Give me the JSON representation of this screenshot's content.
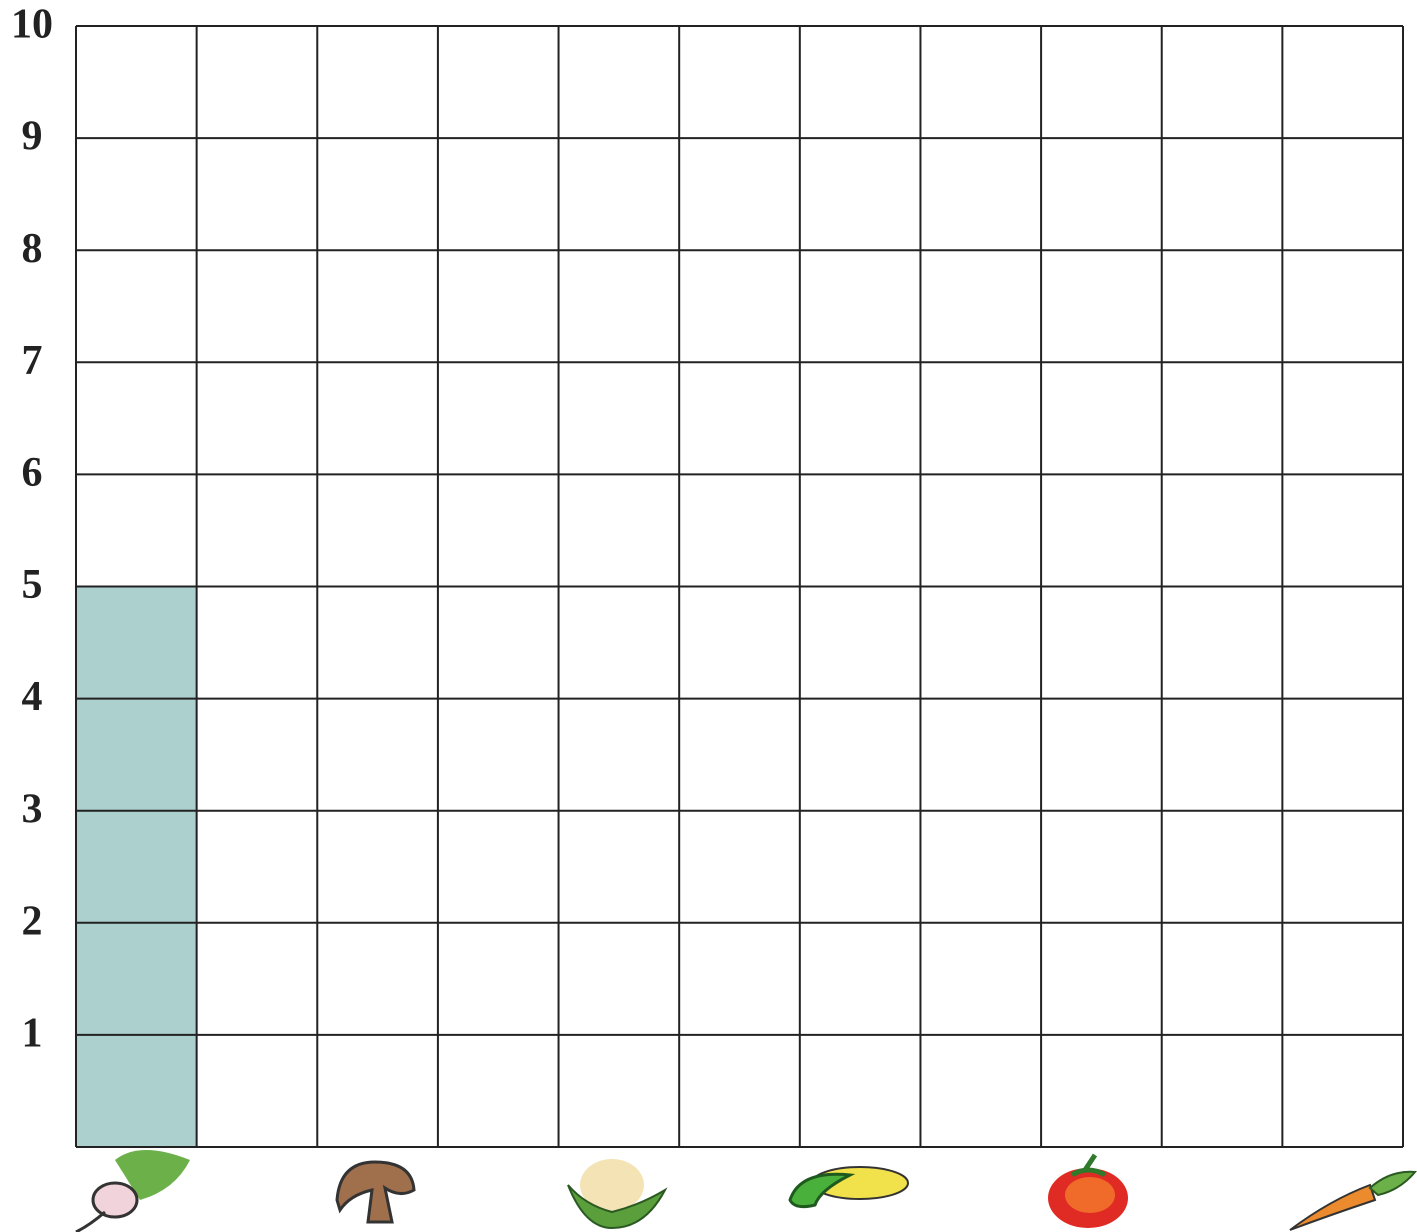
{
  "chart_data": {
    "type": "bar",
    "categories": [
      null,
      null,
      null,
      null,
      null,
      null,
      null,
      null,
      null,
      null,
      null
    ],
    "values": [
      5,
      null,
      null,
      null,
      null,
      null,
      null,
      null,
      null,
      null,
      null
    ],
    "color": "#acd0cd",
    "ylim": [
      0,
      10
    ],
    "yticks": [
      1,
      2,
      3,
      4,
      5,
      6,
      7,
      8,
      9,
      10
    ],
    "grid": true
  }
}
